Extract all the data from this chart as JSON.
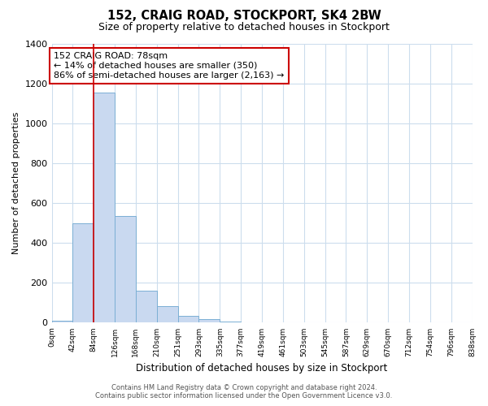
{
  "title": "152, CRAIG ROAD, STOCKPORT, SK4 2BW",
  "subtitle": "Size of property relative to detached houses in Stockport",
  "xlabel": "Distribution of detached houses by size in Stockport",
  "ylabel": "Number of detached properties",
  "bar_values": [
    10,
    500,
    1155,
    535,
    160,
    82,
    35,
    18,
    5,
    0,
    0,
    0,
    0,
    0,
    0,
    0,
    0,
    0,
    0,
    0
  ],
  "bar_labels": [
    "0sqm",
    "42sqm",
    "84sqm",
    "126sqm",
    "168sqm",
    "210sqm",
    "251sqm",
    "293sqm",
    "335sqm",
    "377sqm",
    "419sqm",
    "461sqm",
    "503sqm",
    "545sqm",
    "587sqm",
    "629sqm",
    "670sqm",
    "712sqm",
    "754sqm",
    "796sqm",
    "838sqm"
  ],
  "bar_color": "#c9d9f0",
  "bar_edge_color": "#7bafd4",
  "vline_x": 2,
  "vline_color": "#cc0000",
  "ylim": [
    0,
    1400
  ],
  "yticks": [
    0,
    200,
    400,
    600,
    800,
    1000,
    1200,
    1400
  ],
  "annotation_title": "152 CRAIG ROAD: 78sqm",
  "annotation_line1": "← 14% of detached houses are smaller (350)",
  "annotation_line2": "86% of semi-detached houses are larger (2,163) →",
  "footer1": "Contains HM Land Registry data © Crown copyright and database right 2024.",
  "footer2": "Contains public sector information licensed under the Open Government Licence v3.0.",
  "background_color": "#ffffff",
  "grid_color": "#ccdded"
}
